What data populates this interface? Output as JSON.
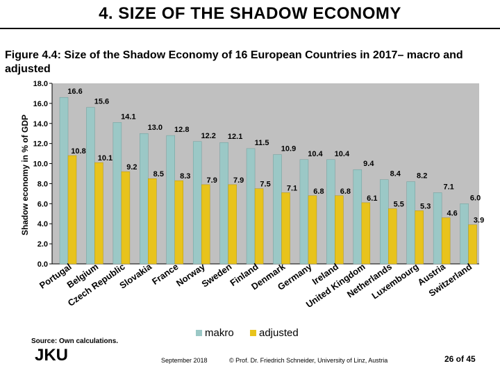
{
  "slide": {
    "title": "4. SIZE OF THE SHADOW ECONOMY",
    "figure_caption": "Figure 4.4: Size of the Shadow Economy of 16 European Countries in 2017– macro and adjusted",
    "source": "Source: Own calculations.",
    "logo_text": "JKU",
    "footer_date": "September 2018",
    "footer_copyright": "© Prof. Dr. Friedrich Schneider, University of Linz, Austria",
    "footer_page": "26 of 45"
  },
  "chart_data": {
    "type": "bar",
    "title": "",
    "xlabel": "",
    "ylabel": "Shadow economy in % of GDP",
    "ylim": [
      0,
      18
    ],
    "yticks": [
      "0.0",
      "2.0",
      "4.0",
      "6.0",
      "8.0",
      "10.0",
      "12.0",
      "14.0",
      "16.0",
      "18.0"
    ],
    "categories": [
      "Portugal",
      "Belgium",
      "Czech Republic",
      "Slovakia",
      "France",
      "Norway",
      "Sweden",
      "Finland",
      "Denmark",
      "Germany",
      "Ireland",
      "United Kingdom",
      "Netherlands",
      "Luxembourg",
      "Austria",
      "Switzerland"
    ],
    "series": [
      {
        "name": "makro",
        "color": "#9bc8c6",
        "values": [
          16.6,
          15.6,
          14.1,
          13.0,
          12.8,
          12.2,
          12.1,
          11.5,
          10.9,
          10.4,
          10.4,
          9.4,
          8.4,
          8.2,
          7.1,
          6.0
        ],
        "labels": [
          "16.6",
          "15.6",
          "14.1",
          "13.0",
          "12.8",
          "12.2",
          "12.1",
          "11.5",
          "10.9",
          "10.4",
          "10.4",
          "9.4",
          "8.4",
          "8.2",
          "7.1",
          "6.0"
        ]
      },
      {
        "name": "adjusted",
        "color": "#e8c31c",
        "values": [
          10.8,
          10.1,
          9.2,
          8.5,
          8.3,
          7.9,
          7.9,
          7.5,
          7.1,
          6.8,
          6.8,
          6.1,
          5.5,
          5.3,
          4.6,
          3.9
        ],
        "labels": [
          "10.8",
          "10.1",
          "9.2",
          "8.5",
          "8.3",
          "7.9",
          "7.9",
          "7.5",
          "7.1",
          "6.8",
          "6.8",
          "6.1",
          "5.5",
          "5.3",
          "4.6",
          "3.9"
        ]
      }
    ],
    "plot_background": "#c0c0c0",
    "legend_position": "bottom-center",
    "grid": false
  }
}
